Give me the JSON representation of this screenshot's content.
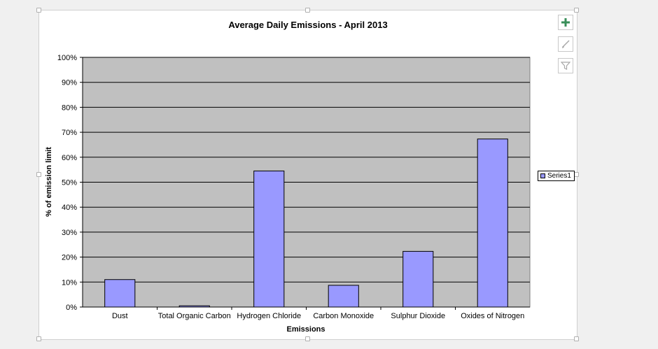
{
  "colors": {
    "plot_background": "#c0c0c0",
    "bar_fill": "#9999ff",
    "bar_stroke": "#000000",
    "gridline": "#000000",
    "add_icon": "#3a8f5a",
    "muted_icon": "#a8a8a8"
  },
  "toolbar": {
    "chart_elements_icon": "plus-icon",
    "chart_styles_icon": "brush-icon",
    "chart_filters_icon": "funnel-icon"
  },
  "chart_data": {
    "type": "bar",
    "title": "Average Daily Emissions - April 2013",
    "xlabel": "Emissions",
    "ylabel": "% of emission limit",
    "categories": [
      "Dust",
      "Total Organic Carbon",
      "Hydrogen Chloride",
      "Carbon Monoxide",
      "Sulphur Dioxide",
      "Oxides of Nitrogen"
    ],
    "series": [
      {
        "name": "Series1",
        "values": [
          11,
          0.5,
          54.5,
          8.7,
          22.3,
          67.3
        ]
      }
    ],
    "ylim": [
      0,
      100
    ],
    "yticks": [
      "0%",
      "10%",
      "20%",
      "30%",
      "40%",
      "50%",
      "60%",
      "70%",
      "80%",
      "90%",
      "100%"
    ],
    "grid": true,
    "legend_position": "right"
  }
}
